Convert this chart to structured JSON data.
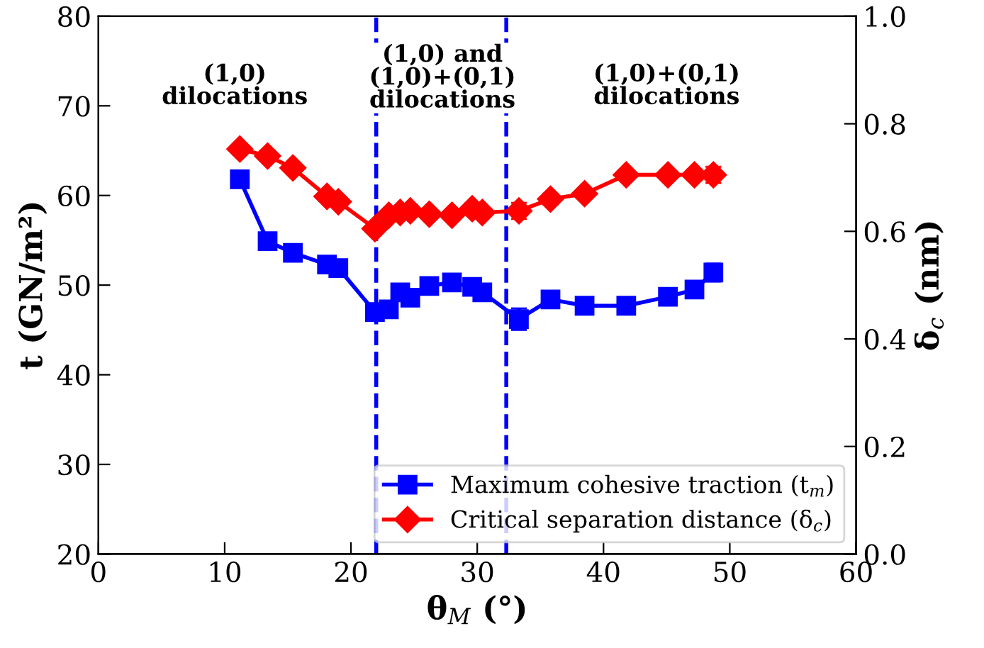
{
  "chart_data": {
    "type": "line",
    "xlabel": "θ$_{M}$ (°)",
    "ylabel": "t (GN/m²)",
    "y2label": "δ$_{c}$ (nm)",
    "xlim": [
      0,
      60
    ],
    "xticks": [
      0,
      10,
      20,
      30,
      40,
      50,
      60
    ],
    "ylim": [
      20,
      80
    ],
    "yticks": [
      20,
      30,
      40,
      50,
      60,
      70,
      80
    ],
    "y2lim": [
      0,
      1.0
    ],
    "y2ticks": [
      {
        "value": 0,
        "label": "0.0"
      },
      0.2,
      0.4,
      0.6,
      0.8,
      {
        "value": 1.0,
        "label": "1.0"
      }
    ],
    "legend": "bottom right",
    "grid": false,
    "line_style": "solid",
    "series": [
      {
        "name": "Maximum cohesive traction (t$_{m}$)",
        "color": "#0000ff",
        "marker": "square",
        "x": [
          11.2,
          13.4,
          15.4,
          18.1,
          19.0,
          21.9,
          23.0,
          23.9,
          24.7,
          26.2,
          28.0,
          29.6,
          30.4,
          33.3,
          35.8,
          38.5,
          41.8,
          45.1,
          47.2,
          48.7
        ],
        "values": [
          61.8,
          54.9,
          53.6,
          52.3,
          51.9,
          47.0,
          47.3,
          49.2,
          48.6,
          49.9,
          50.3,
          49.8,
          49.2,
          46.2,
          48.4,
          47.7,
          47.7,
          48.7,
          49.5,
          51.4
        ],
        "errors": [
          0.6,
          0.6,
          0.5,
          0.5,
          0.5,
          0.6,
          0.5,
          0.6,
          0.6,
          0.5,
          0.5,
          0.6,
          0.6,
          1.2,
          0.6,
          0.5,
          0.6,
          0.5,
          0.6,
          1.0
        ]
      },
      {
        "name": "Critical separation distance (δ$_{c}$)",
        "color": "#ff0000",
        "marker": "diamond",
        "axis": "y2",
        "x": [
          11.2,
          13.4,
          15.4,
          18.1,
          19.0,
          21.9,
          23.0,
          23.9,
          24.7,
          26.2,
          28.0,
          29.6,
          30.4,
          33.3,
          35.8,
          38.5,
          41.8,
          45.1,
          47.2,
          48.7
        ],
        "values": [
          0.753,
          0.74,
          0.718,
          0.665,
          0.655,
          0.605,
          0.63,
          0.635,
          0.638,
          0.632,
          0.63,
          0.642,
          0.635,
          0.638,
          0.66,
          0.67,
          0.705,
          0.705,
          0.705,
          0.705
        ],
        "errors": [
          0.01,
          0.01,
          0.008,
          0.008,
          0.008,
          0.008,
          0.008,
          0.01,
          0.01,
          0.008,
          0.008,
          0.01,
          0.008,
          0.015,
          0.01,
          0.008,
          0.008,
          0.008,
          0.01,
          0.015
        ]
      }
    ],
    "ref_lines": [
      {
        "axis": "x",
        "value": 22.0,
        "color": "#0000ff",
        "line_style": "dashed"
      },
      {
        "axis": "x",
        "value": 32.3,
        "color": "#0000ff",
        "line_style": "dashed"
      }
    ],
    "annotations": [
      "(1,0)\ndilocations",
      "(1,0) and\n(1,0)+(0,1)\ndilocations",
      "(1,0)+(0,1)\ndilocations"
    ]
  }
}
